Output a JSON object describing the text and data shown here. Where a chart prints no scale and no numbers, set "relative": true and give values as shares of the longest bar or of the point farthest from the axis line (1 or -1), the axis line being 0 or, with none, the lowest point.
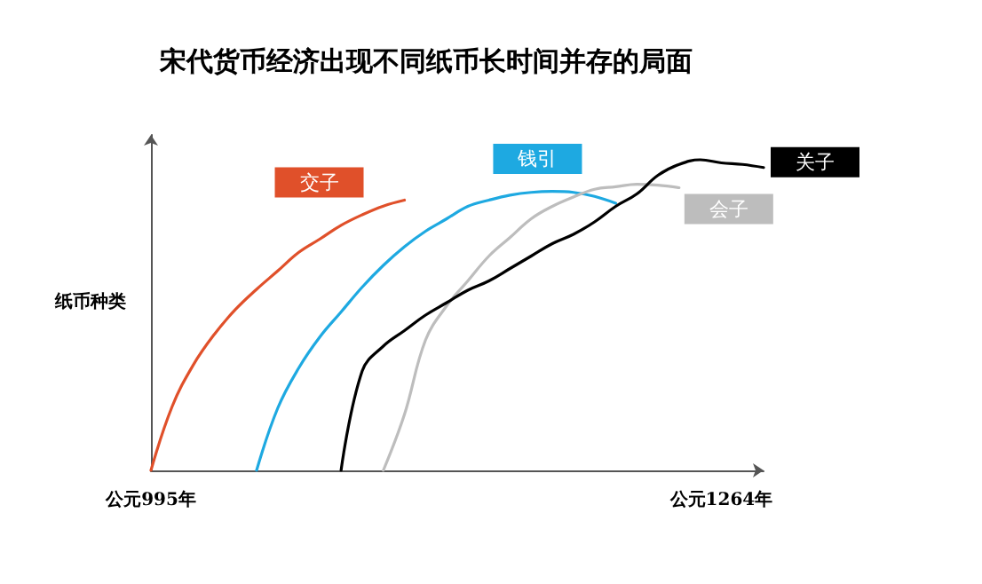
{
  "chart_data": {
    "type": "line",
    "title": "宋代货币经济出现不同纸币长时间并存的局面",
    "ylabel": "纸币种类",
    "relative": true,
    "marker": "none",
    "line_style": "solid",
    "grid": false,
    "legend": false,
    "categories": [
      "公元995年",
      null,
      null,
      null,
      null,
      null,
      null,
      null,
      null,
      null,
      null,
      null,
      null,
      null,
      null,
      null,
      null,
      null,
      null,
      null,
      null,
      null,
      null,
      null,
      null,
      null,
      null,
      "公元1264年",
      null,
      null
    ],
    "series": [
      {
        "name": "交子",
        "color": "#e0502a",
        "values": [
          0,
          0.205,
          0.339,
          0.438,
          0.518,
          0.583,
          0.642,
          0.702,
          0.745,
          0.789,
          0.823,
          0.851,
          0.87,
          null,
          null,
          null,
          null,
          null,
          null,
          null,
          null,
          null,
          null,
          null,
          null,
          null,
          null,
          null,
          null,
          null
        ]
      },
      {
        "name": "钱引",
        "color": "#1ea9e1",
        "values": [
          null,
          null,
          null,
          null,
          null,
          0,
          0.2,
          0.33,
          0.43,
          0.51,
          0.59,
          0.66,
          0.72,
          0.77,
          0.81,
          0.85,
          0.87,
          0.886,
          0.895,
          0.898,
          0.895,
          0.882,
          0.86,
          null,
          null,
          null,
          null,
          null,
          null,
          null
        ]
      },
      {
        "name": "会子",
        "color": "#bdbdbd",
        "values": [
          null,
          null,
          null,
          null,
          null,
          null,
          null,
          null,
          null,
          null,
          null,
          0,
          0.18,
          0.42,
          0.53,
          0.61,
          0.69,
          0.75,
          0.81,
          0.85,
          0.88,
          0.905,
          0.913,
          0.921,
          0.918,
          0.91,
          null,
          null,
          null,
          null
        ]
      },
      {
        "name": "关子",
        "color": "#000000",
        "values": [
          null,
          null,
          null,
          null,
          null,
          null,
          null,
          null,
          null,
          0,
          0.32,
          0.4,
          0.45,
          0.5,
          0.54,
          0.58,
          0.61,
          0.65,
          0.69,
          0.73,
          0.76,
          0.8,
          0.85,
          0.89,
          0.95,
          0.985,
          1,
          0.99,
          0.985,
          0.975
        ]
      }
    ]
  }
}
